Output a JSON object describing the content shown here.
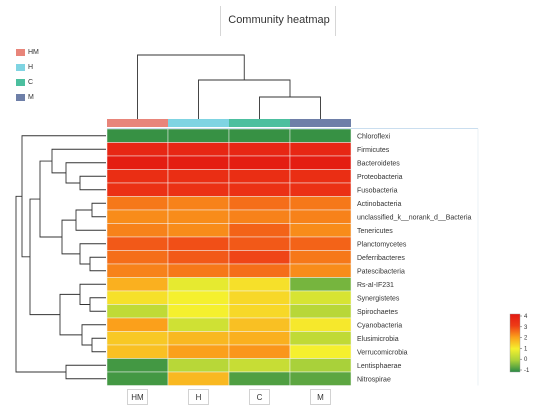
{
  "chart_data": {
    "type": "heatmap",
    "title": "Community heatmap",
    "columns": [
      "HM",
      "H",
      "C",
      "M"
    ],
    "column_group_colors": {
      "HM": "#e8857a",
      "H": "#7fd4e2",
      "C": "#4cbf9f",
      "M": "#6e7fa8"
    },
    "rows": [
      "Chloroflexi",
      "Firmicutes",
      "Bacteroidetes",
      "Proteobacteria",
      "Fusobacteria",
      "Actinobacteria",
      "unclassified_k__norank_d__Bacteria",
      "Tenericutes",
      "Planctomycetes",
      "Deferribacteres",
      "Patescibacteria",
      "Rs-aI-IF231",
      "Synergistetes",
      "Spirochaetes",
      "Cyanobacteria",
      "Elusimicrobia",
      "Verrucomicrobia",
      "Lentisphaerae",
      "Nitrospirae"
    ],
    "values": [
      [
        -0.9,
        -0.9,
        -0.9,
        -0.9
      ],
      [
        3.6,
        3.6,
        3.6,
        3.6
      ],
      [
        3.9,
        3.9,
        3.9,
        3.9
      ],
      [
        3.4,
        3.4,
        3.4,
        3.4
      ],
      [
        3.3,
        3.3,
        3.3,
        3.3
      ],
      [
        2.4,
        2.3,
        2.5,
        2.4
      ],
      [
        2.2,
        2.2,
        2.3,
        2.3
      ],
      [
        2.3,
        2.2,
        2.6,
        2.2
      ],
      [
        2.7,
        2.8,
        2.7,
        2.6
      ],
      [
        2.5,
        2.7,
        2.9,
        2.4
      ],
      [
        2.3,
        2.4,
        2.5,
        2.2
      ],
      [
        1.8,
        0.8,
        1.2,
        -0.4
      ],
      [
        1.2,
        1.0,
        1.3,
        0.6
      ],
      [
        0.3,
        1.0,
        1.3,
        0.2
      ],
      [
        2.0,
        0.5,
        1.6,
        1.1
      ],
      [
        1.5,
        1.7,
        1.8,
        0.3
      ],
      [
        1.6,
        2.0,
        2.1,
        1.0
      ],
      [
        -0.8,
        0.2,
        0.4,
        0.0
      ],
      [
        -0.8,
        1.7,
        -0.7,
        -0.6
      ]
    ],
    "colorbar": {
      "min": -1,
      "max": 4,
      "ticks": [
        "4",
        "3",
        "2",
        "1",
        "0",
        "-1"
      ],
      "colors": [
        "#2a8a45",
        "#a9d13a",
        "#f5f02e",
        "#fba01b",
        "#ee3b16",
        "#e31a12"
      ]
    },
    "row_dendrogram": true,
    "column_dendrogram": true,
    "legend_placement": "top-left"
  }
}
